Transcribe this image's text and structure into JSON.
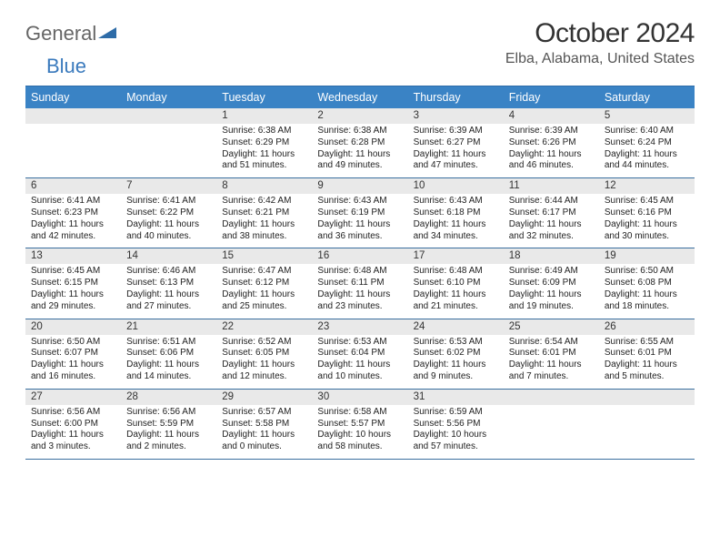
{
  "brand": {
    "part1": "General",
    "part2": "Blue"
  },
  "title": "October 2024",
  "location": "Elba, Alabama, United States",
  "colors": {
    "header_bg": "#3a83c5",
    "header_text": "#ffffff",
    "week_border": "#3a6f9f",
    "daynum_bg": "#e9e9e9",
    "body_text": "#222222",
    "brand_gray": "#666666",
    "brand_blue": "#3a7abd"
  },
  "day_names": [
    "Sunday",
    "Monday",
    "Tuesday",
    "Wednesday",
    "Thursday",
    "Friday",
    "Saturday"
  ],
  "weeks": [
    [
      {
        "n": "",
        "sr": "",
        "ss": "",
        "dl": ""
      },
      {
        "n": "",
        "sr": "",
        "ss": "",
        "dl": ""
      },
      {
        "n": "1",
        "sr": "Sunrise: 6:38 AM",
        "ss": "Sunset: 6:29 PM",
        "dl": "Daylight: 11 hours and 51 minutes."
      },
      {
        "n": "2",
        "sr": "Sunrise: 6:38 AM",
        "ss": "Sunset: 6:28 PM",
        "dl": "Daylight: 11 hours and 49 minutes."
      },
      {
        "n": "3",
        "sr": "Sunrise: 6:39 AM",
        "ss": "Sunset: 6:27 PM",
        "dl": "Daylight: 11 hours and 47 minutes."
      },
      {
        "n": "4",
        "sr": "Sunrise: 6:39 AM",
        "ss": "Sunset: 6:26 PM",
        "dl": "Daylight: 11 hours and 46 minutes."
      },
      {
        "n": "5",
        "sr": "Sunrise: 6:40 AM",
        "ss": "Sunset: 6:24 PM",
        "dl": "Daylight: 11 hours and 44 minutes."
      }
    ],
    [
      {
        "n": "6",
        "sr": "Sunrise: 6:41 AM",
        "ss": "Sunset: 6:23 PM",
        "dl": "Daylight: 11 hours and 42 minutes."
      },
      {
        "n": "7",
        "sr": "Sunrise: 6:41 AM",
        "ss": "Sunset: 6:22 PM",
        "dl": "Daylight: 11 hours and 40 minutes."
      },
      {
        "n": "8",
        "sr": "Sunrise: 6:42 AM",
        "ss": "Sunset: 6:21 PM",
        "dl": "Daylight: 11 hours and 38 minutes."
      },
      {
        "n": "9",
        "sr": "Sunrise: 6:43 AM",
        "ss": "Sunset: 6:19 PM",
        "dl": "Daylight: 11 hours and 36 minutes."
      },
      {
        "n": "10",
        "sr": "Sunrise: 6:43 AM",
        "ss": "Sunset: 6:18 PM",
        "dl": "Daylight: 11 hours and 34 minutes."
      },
      {
        "n": "11",
        "sr": "Sunrise: 6:44 AM",
        "ss": "Sunset: 6:17 PM",
        "dl": "Daylight: 11 hours and 32 minutes."
      },
      {
        "n": "12",
        "sr": "Sunrise: 6:45 AM",
        "ss": "Sunset: 6:16 PM",
        "dl": "Daylight: 11 hours and 30 minutes."
      }
    ],
    [
      {
        "n": "13",
        "sr": "Sunrise: 6:45 AM",
        "ss": "Sunset: 6:15 PM",
        "dl": "Daylight: 11 hours and 29 minutes."
      },
      {
        "n": "14",
        "sr": "Sunrise: 6:46 AM",
        "ss": "Sunset: 6:13 PM",
        "dl": "Daylight: 11 hours and 27 minutes."
      },
      {
        "n": "15",
        "sr": "Sunrise: 6:47 AM",
        "ss": "Sunset: 6:12 PM",
        "dl": "Daylight: 11 hours and 25 minutes."
      },
      {
        "n": "16",
        "sr": "Sunrise: 6:48 AM",
        "ss": "Sunset: 6:11 PM",
        "dl": "Daylight: 11 hours and 23 minutes."
      },
      {
        "n": "17",
        "sr": "Sunrise: 6:48 AM",
        "ss": "Sunset: 6:10 PM",
        "dl": "Daylight: 11 hours and 21 minutes."
      },
      {
        "n": "18",
        "sr": "Sunrise: 6:49 AM",
        "ss": "Sunset: 6:09 PM",
        "dl": "Daylight: 11 hours and 19 minutes."
      },
      {
        "n": "19",
        "sr": "Sunrise: 6:50 AM",
        "ss": "Sunset: 6:08 PM",
        "dl": "Daylight: 11 hours and 18 minutes."
      }
    ],
    [
      {
        "n": "20",
        "sr": "Sunrise: 6:50 AM",
        "ss": "Sunset: 6:07 PM",
        "dl": "Daylight: 11 hours and 16 minutes."
      },
      {
        "n": "21",
        "sr": "Sunrise: 6:51 AM",
        "ss": "Sunset: 6:06 PM",
        "dl": "Daylight: 11 hours and 14 minutes."
      },
      {
        "n": "22",
        "sr": "Sunrise: 6:52 AM",
        "ss": "Sunset: 6:05 PM",
        "dl": "Daylight: 11 hours and 12 minutes."
      },
      {
        "n": "23",
        "sr": "Sunrise: 6:53 AM",
        "ss": "Sunset: 6:04 PM",
        "dl": "Daylight: 11 hours and 10 minutes."
      },
      {
        "n": "24",
        "sr": "Sunrise: 6:53 AM",
        "ss": "Sunset: 6:02 PM",
        "dl": "Daylight: 11 hours and 9 minutes."
      },
      {
        "n": "25",
        "sr": "Sunrise: 6:54 AM",
        "ss": "Sunset: 6:01 PM",
        "dl": "Daylight: 11 hours and 7 minutes."
      },
      {
        "n": "26",
        "sr": "Sunrise: 6:55 AM",
        "ss": "Sunset: 6:01 PM",
        "dl": "Daylight: 11 hours and 5 minutes."
      }
    ],
    [
      {
        "n": "27",
        "sr": "Sunrise: 6:56 AM",
        "ss": "Sunset: 6:00 PM",
        "dl": "Daylight: 11 hours and 3 minutes."
      },
      {
        "n": "28",
        "sr": "Sunrise: 6:56 AM",
        "ss": "Sunset: 5:59 PM",
        "dl": "Daylight: 11 hours and 2 minutes."
      },
      {
        "n": "29",
        "sr": "Sunrise: 6:57 AM",
        "ss": "Sunset: 5:58 PM",
        "dl": "Daylight: 11 hours and 0 minutes."
      },
      {
        "n": "30",
        "sr": "Sunrise: 6:58 AM",
        "ss": "Sunset: 5:57 PM",
        "dl": "Daylight: 10 hours and 58 minutes."
      },
      {
        "n": "31",
        "sr": "Sunrise: 6:59 AM",
        "ss": "Sunset: 5:56 PM",
        "dl": "Daylight: 10 hours and 57 minutes."
      },
      {
        "n": "",
        "sr": "",
        "ss": "",
        "dl": ""
      },
      {
        "n": "",
        "sr": "",
        "ss": "",
        "dl": ""
      }
    ]
  ]
}
